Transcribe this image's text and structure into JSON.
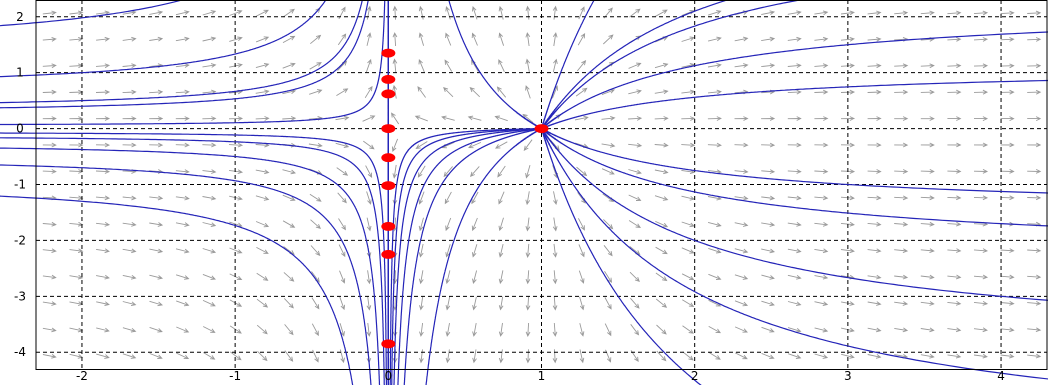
{
  "chart_data": {
    "type": "scatter",
    "title": "",
    "xlabel": "",
    "ylabel": "",
    "xlim": [
      -2.3,
      4.3
    ],
    "ylim": [
      -4.3,
      2.3
    ],
    "xticks": [
      -2,
      -1,
      0,
      1,
      2,
      3,
      4
    ],
    "yticks": [
      2,
      1,
      0,
      -1,
      -2,
      -3,
      -4
    ],
    "x_tick_labels": [
      "-2",
      "-1",
      "0",
      "1",
      "2",
      "3",
      "4"
    ],
    "y_tick_labels": [
      "2",
      "1",
      "0",
      "-1",
      "-2",
      "-3",
      "-4"
    ],
    "grid": true,
    "grid_style": "dashed",
    "field": "direction field of dx/dt = x(x-1), dy/dt = y",
    "initial_points": [
      {
        "x": 0,
        "y": 1.35
      },
      {
        "x": 0,
        "y": 0.88
      },
      {
        "x": 0,
        "y": 0.62
      },
      {
        "x": 0,
        "y": 0.0
      },
      {
        "x": 0,
        "y": -0.52
      },
      {
        "x": 0,
        "y": -1.02
      },
      {
        "x": 0,
        "y": -1.75
      },
      {
        "x": 0,
        "y": -2.25
      },
      {
        "x": 0,
        "y": -3.85
      },
      {
        "x": 1,
        "y": 0.0
      }
    ],
    "colors": {
      "trajectory": "#2424b8",
      "point": "#ff0000",
      "arrow": "#9a9a9a",
      "grid": "#000000"
    }
  }
}
